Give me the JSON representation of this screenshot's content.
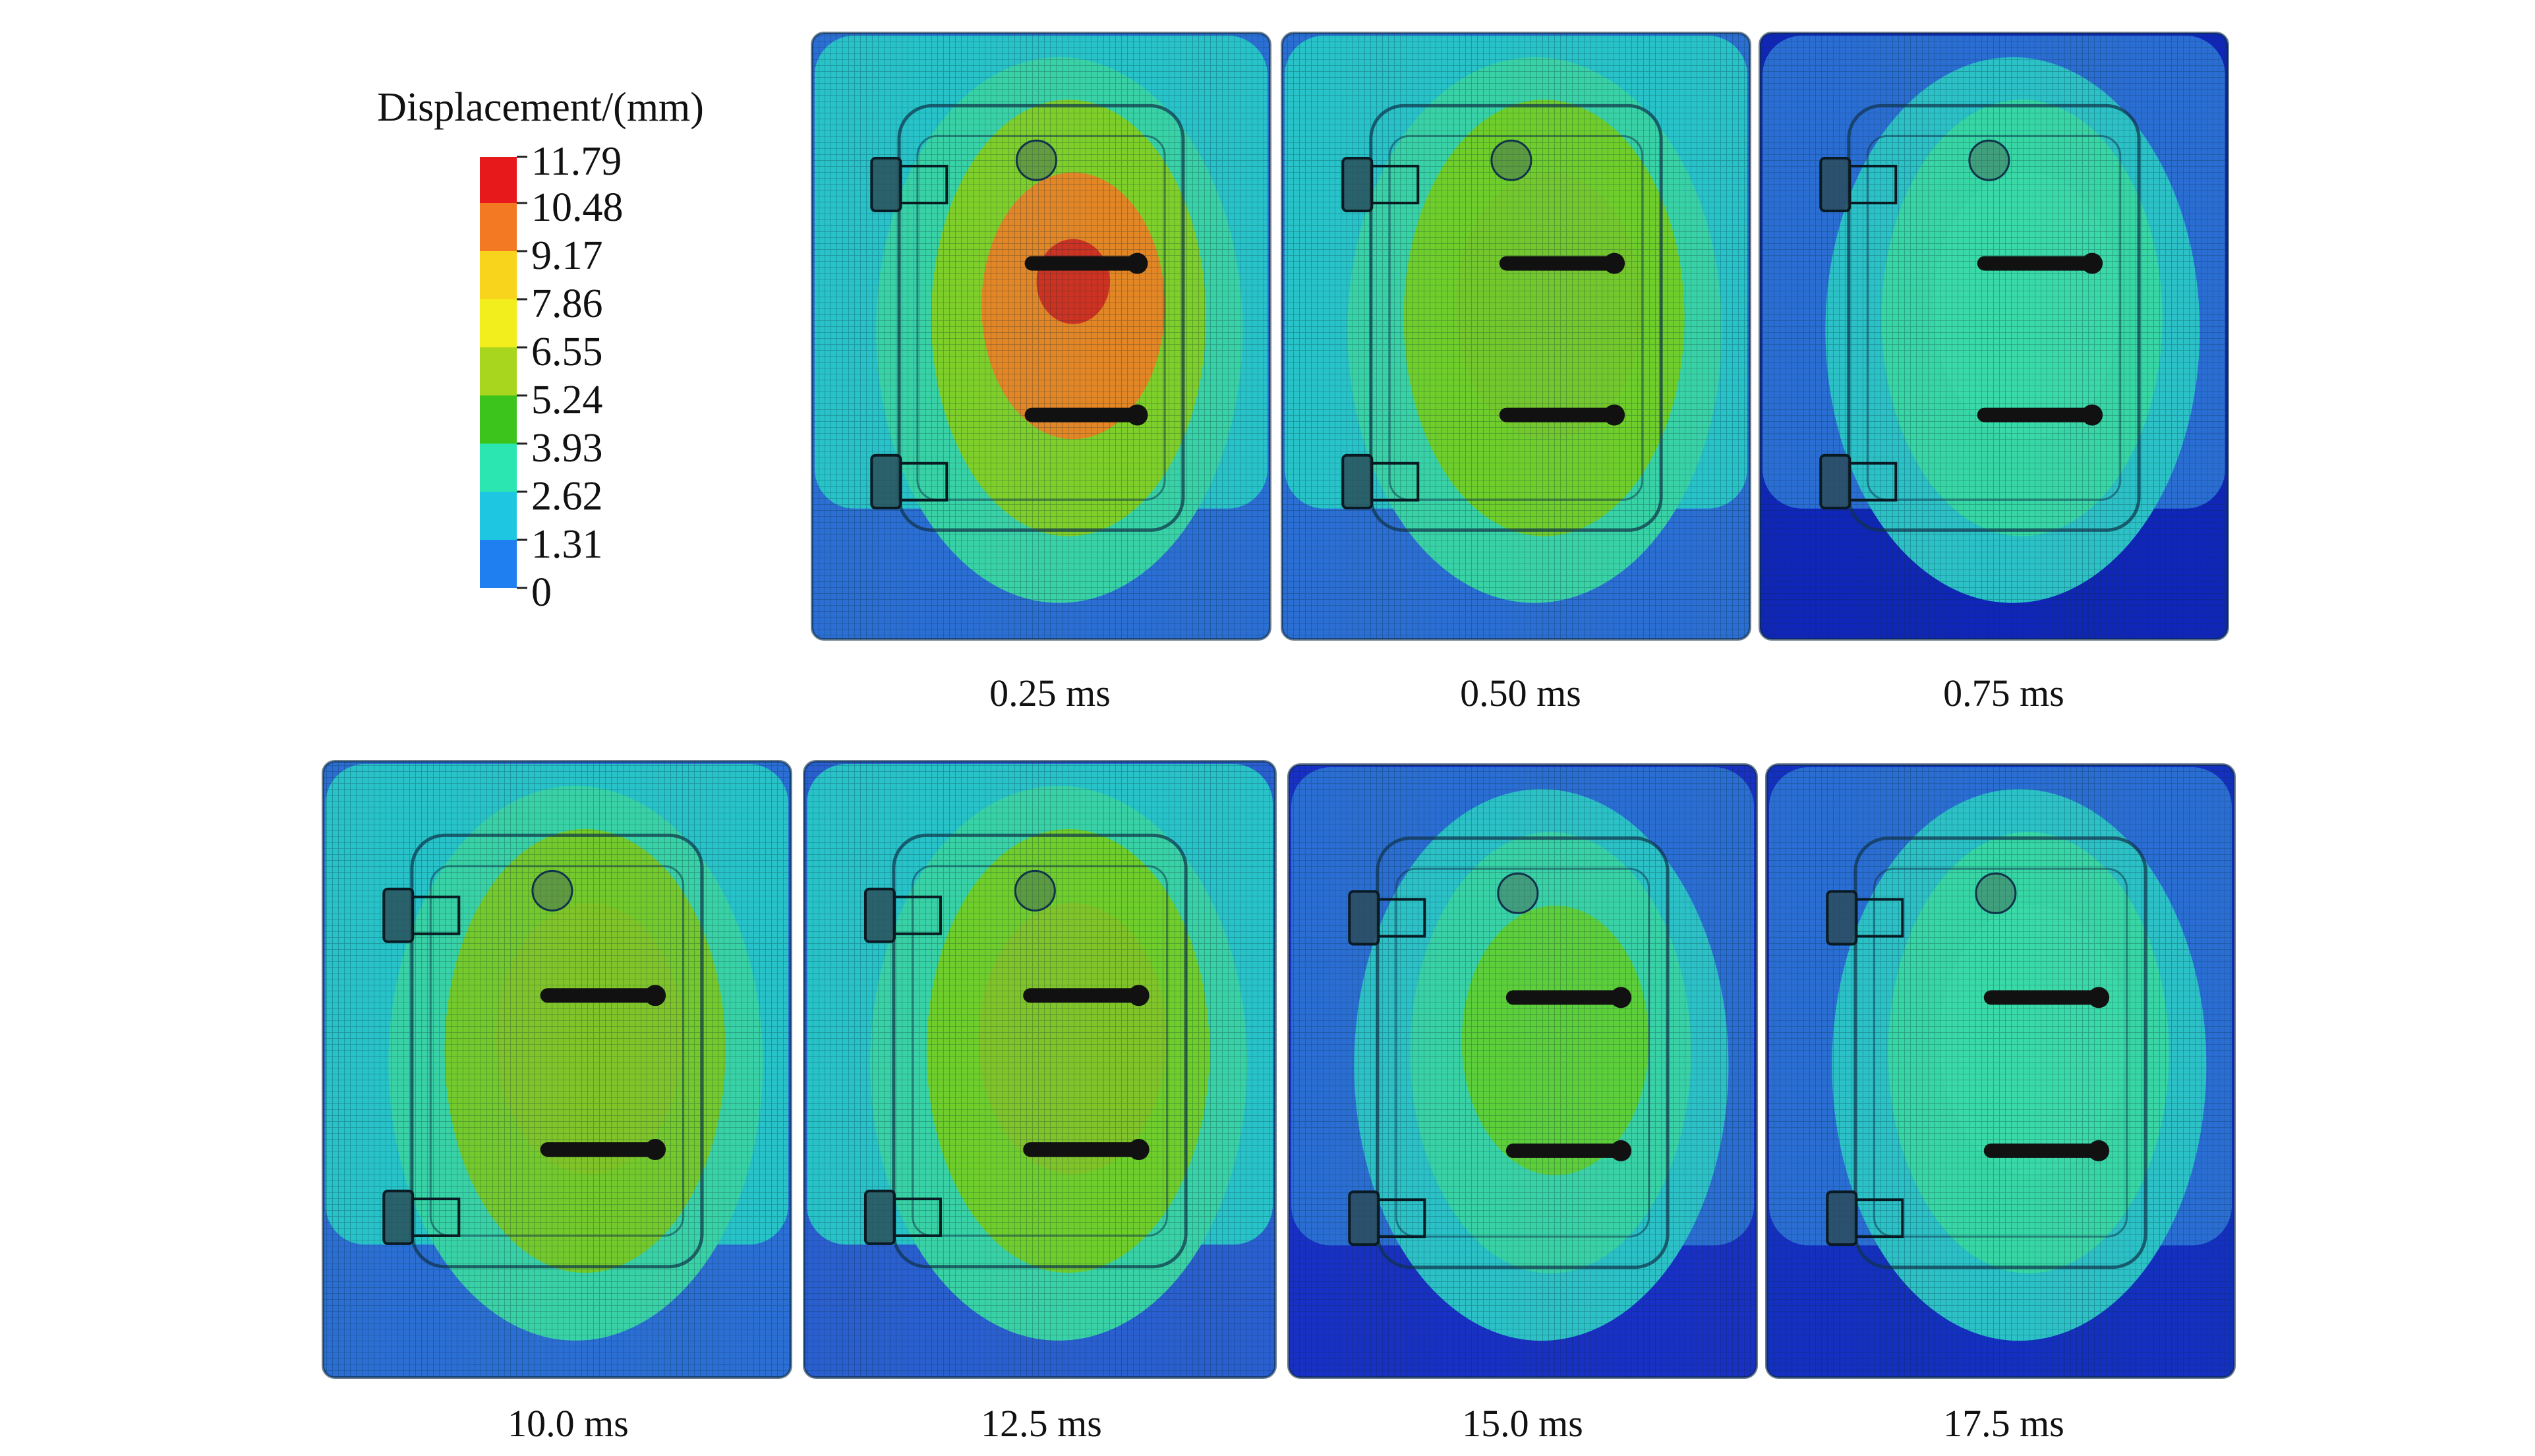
{
  "figure": {
    "legend": {
      "title": "Displacement/(mm)",
      "ticks": [
        "11.79",
        "10.48",
        "9.17",
        "7.86",
        "6.55",
        "5.24",
        "3.93",
        "2.62",
        "1.31",
        "0"
      ],
      "colors": [
        "#e8191b",
        "#f37a22",
        "#f8d41c",
        "#f2ee1e",
        "#a8d51e",
        "#3cc41c",
        "#2be6b0",
        "#1fc6e2",
        "#1f7ef0",
        "#0a12c8"
      ]
    },
    "panels": [
      {
        "label": "0.25 ms",
        "bg": "#2b6fd4",
        "outer": "#27c3c9",
        "mid": "#39d2a6",
        "inner": "#7fcf2a",
        "core": "#e38626",
        "peak": "#cc3322"
      },
      {
        "label": "0.50 ms",
        "bg": "#2b6fd4",
        "outer": "#27c3c9",
        "mid": "#39d2a6",
        "inner": "#6fce2c",
        "core": "#74c82e",
        "peak": ""
      },
      {
        "label": "0.75 ms",
        "bg": "#1026b8",
        "outer": "#2a6ed4",
        "mid": "#2bc1c6",
        "inner": "#37d6a4",
        "core": "#3ad9a8",
        "peak": ""
      },
      {
        "label": "10.0 ms",
        "bg": "#2b6fd4",
        "outer": "#27c3c9",
        "mid": "#39d2a6",
        "inner": "#74c92c",
        "core": "#80c42a",
        "peak": ""
      },
      {
        "label": "12.5 ms",
        "bg": "#2a5fd0",
        "outer": "#27c3c9",
        "mid": "#39d2a6",
        "inner": "#6fce2c",
        "core": "#80c42a",
        "peak": ""
      },
      {
        "label": "15.0 ms",
        "bg": "#1930c4",
        "outer": "#2a6ed4",
        "mid": "#2bc1c6",
        "inner": "#39d2a6",
        "core": "#5ccf3a",
        "peak": ""
      },
      {
        "label": "17.5 ms",
        "bg": "#1430c0",
        "outer": "#2a6ed4",
        "mid": "#2bc1c6",
        "inner": "#37d6a4",
        "core": "#3ad9a8",
        "peak": ""
      }
    ]
  }
}
